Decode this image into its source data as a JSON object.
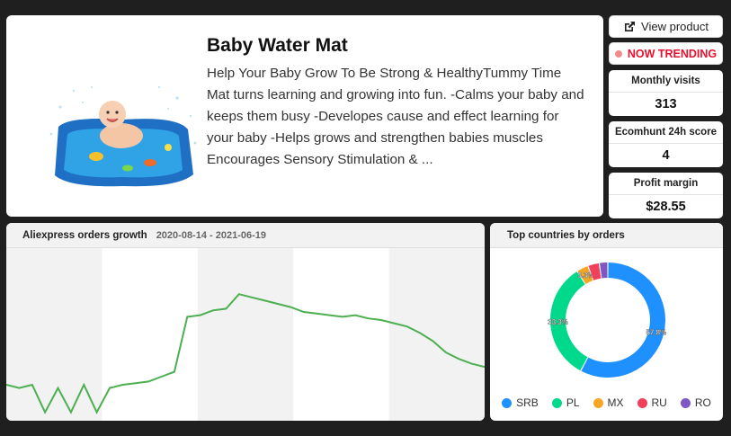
{
  "product": {
    "title": "Baby Water Mat",
    "description": "Help Your Baby Grow To Be Strong & HealthyTummy Time Mat turns learning and growing into fun. -Calms your baby and keeps them busy -Developes cause and effect learning for your baby -Helps grows and strengthen babies muscles Encourages Sensory Stimulation & ...",
    "image_icon": "baby-water-mat-image"
  },
  "actions": {
    "view_product_label": "View product",
    "view_product_icon": "external-link-icon",
    "trending_label": "NOW TRENDING",
    "trending_color": "#e8112d"
  },
  "stats": {
    "monthly_visits": {
      "label": "Monthly visits",
      "value": "313"
    },
    "score": {
      "label": "Ecomhunt 24h score",
      "value": "4"
    },
    "profit_margin": {
      "label": "Profit margin",
      "value": "$28.55"
    }
  },
  "orders_panel": {
    "title": "Aliexpress orders growth",
    "date_range": "2020-08-14 - 2021-06-19"
  },
  "countries_panel": {
    "title": "Top countries by orders"
  },
  "chart_data": [
    {
      "type": "line",
      "title": "Aliexpress orders growth",
      "x_range": [
        "2020-08-14",
        "2021-06-19"
      ],
      "series": [
        {
          "color": "#4caf50",
          "values": [
            20,
            18,
            20,
            3,
            18,
            3,
            20,
            3,
            18,
            20,
            21,
            22,
            25,
            28,
            62,
            63,
            66,
            67,
            76,
            74,
            72,
            70,
            68,
            65,
            64,
            63,
            62,
            63,
            61,
            60,
            58,
            56,
            52,
            47,
            40,
            36,
            33,
            31
          ]
        }
      ],
      "ylim": [
        0,
        100
      ],
      "grid": "vertical-bands"
    },
    {
      "type": "pie",
      "title": "Top countries by orders",
      "categories": [
        "SRB",
        "PL",
        "MX",
        "RU",
        "RO"
      ],
      "values": [
        57.8,
        33.3,
        3.3,
        3.2,
        2.4
      ],
      "data_labels": [
        "57.8%",
        "33.3%",
        "3.3%",
        "",
        ""
      ],
      "colors": [
        "#1e90ff",
        "#00d98b",
        "#f5a623",
        "#f0405a",
        "#7e57c2"
      ],
      "legend": "bottom"
    }
  ]
}
